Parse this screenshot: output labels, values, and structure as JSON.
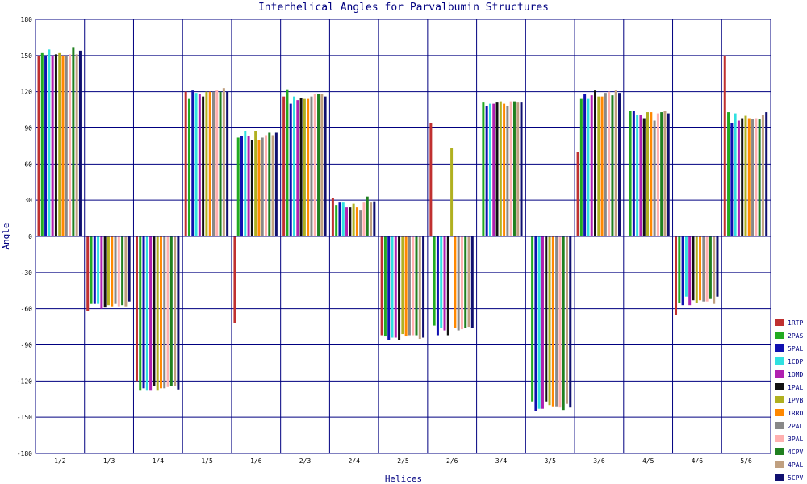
{
  "chart_data": {
    "type": "bar",
    "title": "Interhelical Angles for Parvalbumin Structures",
    "xlabel": "Helices",
    "ylabel": "Angle",
    "ylim": [
      -180,
      180
    ],
    "yticks": [
      180,
      150,
      120,
      90,
      60,
      30,
      0,
      -30,
      -60,
      -90,
      -120,
      -150,
      -180
    ],
    "grid": true,
    "legend_position": "right",
    "categories": [
      "1/2",
      "1/3",
      "1/4",
      "1/5",
      "1/6",
      "2/3",
      "2/4",
      "2/5",
      "2/6",
      "3/4",
      "3/5",
      "3/6",
      "4/5",
      "4/6",
      "5/6"
    ],
    "series": [
      {
        "name": "1RTP",
        "color": "#c03030",
        "values": [
          150,
          -62,
          -120,
          120,
          -72,
          116,
          32,
          -82,
          94,
          null,
          null,
          70,
          null,
          -65,
          150
        ]
      },
      {
        "name": "2PAS",
        "color": "#22aa22",
        "values": [
          152,
          -56,
          -128,
          114,
          82,
          122,
          26,
          -83,
          -74,
          111,
          -137,
          114,
          104,
          -55,
          103
        ]
      },
      {
        "name": "5PAL",
        "color": "#1010b0",
        "values": [
          150,
          -56,
          -126,
          121,
          83,
          110,
          28,
          -86,
          -82,
          108,
          -145,
          118,
          104,
          -57,
          94
        ]
      },
      {
        "name": "1CDP",
        "color": "#30e0e0",
        "values": [
          155,
          -56,
          -128,
          119,
          87,
          116,
          28,
          -84,
          -76,
          110,
          -143,
          114,
          101,
          -50,
          102
        ]
      },
      {
        "name": "1OMD",
        "color": "#b020b0",
        "values": [
          150,
          -60,
          -128,
          118,
          83,
          113,
          24,
          -84,
          -78,
          110,
          -143,
          117,
          101,
          -57,
          96
        ]
      },
      {
        "name": "1PAL",
        "color": "#111111",
        "values": [
          151,
          -59,
          -124,
          116,
          80,
          115,
          24,
          -86,
          -82,
          111,
          -137,
          121,
          98,
          -53,
          98
        ]
      },
      {
        "name": "1PVB",
        "color": "#b0b020",
        "values": [
          152,
          -57,
          -128,
          120,
          87,
          114,
          27,
          -81,
          73,
          112,
          -140,
          116,
          103,
          -55,
          100
        ]
      },
      {
        "name": "1RRO",
        "color": "#ff8800",
        "values": [
          150,
          -58,
          -126,
          120,
          80,
          114,
          24,
          -83,
          -76,
          110,
          -141,
          116,
          103,
          -53,
          98
        ]
      },
      {
        "name": "2PAL",
        "color": "#888888",
        "values": [
          150,
          -56,
          -126,
          120,
          82,
          116,
          22,
          -82,
          -78,
          108,
          -141,
          119,
          96,
          -54,
          97
        ]
      },
      {
        "name": "3PAL",
        "color": "#ffb0b0",
        "values": [
          151,
          -58,
          -125,
          121,
          84,
          118,
          28,
          -82,
          -77,
          112,
          -142,
          120,
          102,
          -54,
          98
        ]
      },
      {
        "name": "4CPV",
        "color": "#208020",
        "values": [
          157,
          -57,
          -124,
          120,
          86,
          118,
          33,
          -82,
          -76,
          112,
          -144,
          117,
          103,
          -52,
          97
        ]
      },
      {
        "name": "4PAL",
        "color": "#c0a080",
        "values": [
          151,
          -58,
          -124,
          123,
          84,
          118,
          28,
          -85,
          -75,
          111,
          -139,
          121,
          104,
          -56,
          101
        ]
      },
      {
        "name": "5CPV",
        "color": "#101070",
        "values": [
          154,
          -54,
          -127,
          120,
          86,
          116,
          29,
          -84,
          -76,
          111,
          -142,
          119,
          102,
          -50,
          103
        ]
      }
    ]
  }
}
